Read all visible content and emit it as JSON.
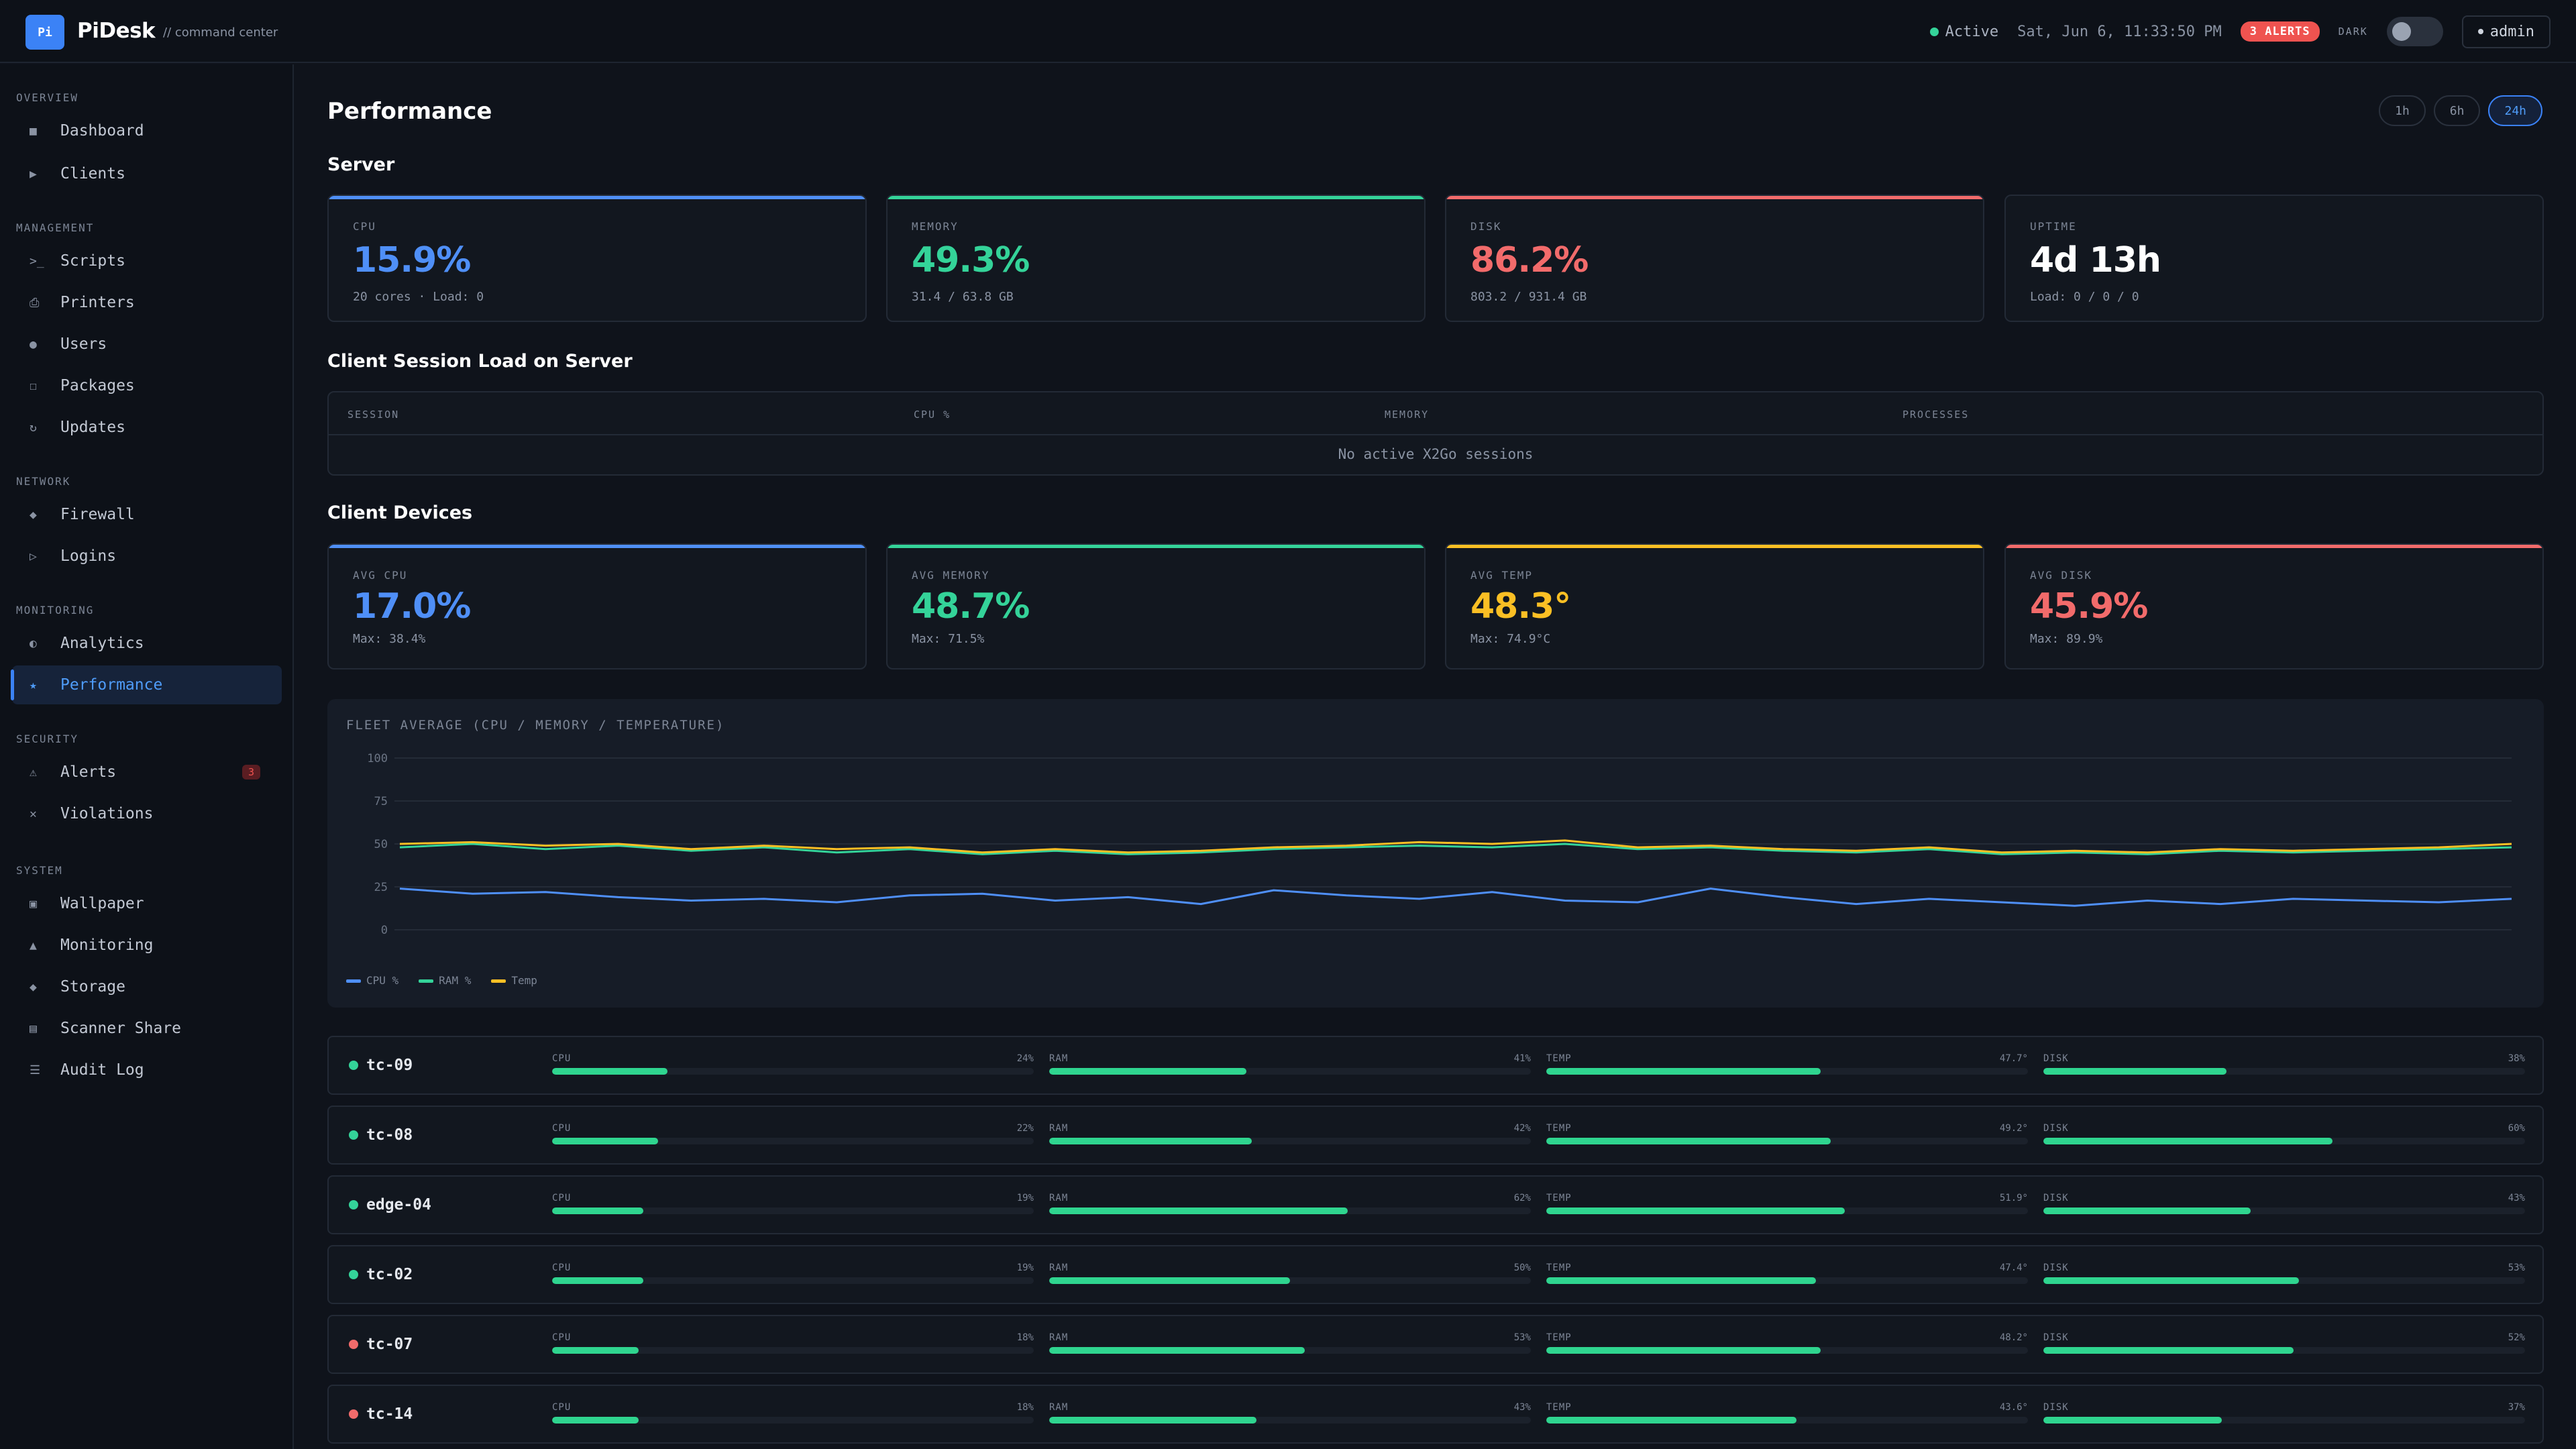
{
  "app": {
    "logo": "Pi",
    "name": "PiDesk",
    "subtitle": "// command center"
  },
  "topbar": {
    "status": "Active",
    "datetime": "Sat, Jun 6, 11:33:50 PM",
    "alerts_badge": "3 ALERTS",
    "theme_label": "DARK",
    "user": "admin"
  },
  "sidebar": {
    "sections": [
      {
        "title": "OVERVIEW",
        "items": [
          {
            "label": "Dashboard",
            "icon": "■"
          },
          {
            "label": "Clients",
            "icon": "▶"
          }
        ]
      },
      {
        "title": "MANAGEMENT",
        "items": [
          {
            "label": "Scripts",
            "icon": ">_"
          },
          {
            "label": "Printers",
            "icon": "⎙"
          },
          {
            "label": "Users",
            "icon": "●"
          },
          {
            "label": "Packages",
            "icon": "☐"
          },
          {
            "label": "Updates",
            "icon": "↻"
          }
        ]
      },
      {
        "title": "NETWORK",
        "items": [
          {
            "label": "Firewall",
            "icon": "◆"
          },
          {
            "label": "Logins",
            "icon": "▷"
          }
        ]
      },
      {
        "title": "MONITORING",
        "items": [
          {
            "label": "Analytics",
            "icon": "◐"
          },
          {
            "label": "Performance",
            "icon": "★"
          }
        ]
      },
      {
        "title": "SECURITY",
        "items": [
          {
            "label": "Alerts",
            "icon": "⚠",
            "badge": "3"
          },
          {
            "label": "Violations",
            "icon": "✕"
          }
        ]
      },
      {
        "title": "SYSTEM",
        "items": [
          {
            "label": "Wallpaper",
            "icon": "▣"
          },
          {
            "label": "Monitoring",
            "icon": "▲"
          },
          {
            "label": "Storage",
            "icon": "◆"
          },
          {
            "label": "Scanner Share",
            "icon": "▤"
          },
          {
            "label": "Audit Log",
            "icon": "☰"
          }
        ]
      }
    ],
    "active_item": "Performance"
  },
  "page": {
    "title": "Performance",
    "ranges": [
      "1h",
      "6h",
      "24h"
    ],
    "active_range": "24h"
  },
  "server": {
    "title": "Server",
    "cards": [
      {
        "label": "CPU",
        "value": "15.9%",
        "sub": "20 cores · Load: 0",
        "color": "#4f8ff7"
      },
      {
        "label": "MEMORY",
        "value": "49.3%",
        "sub": "31.4 / 63.8 GB",
        "color": "#34d399"
      },
      {
        "label": "DISK",
        "value": "86.2%",
        "sub": "803.2 / 931.4 GB",
        "color": "#f26b6b"
      },
      {
        "label": "UPTIME",
        "value": "4d 13h",
        "sub": "Load: 0 / 0 / 0",
        "color": "#ffffff"
      }
    ]
  },
  "sessions": {
    "title": "Client Session Load on Server",
    "columns": [
      "SESSION",
      "CPU %",
      "MEMORY",
      "PROCESSES"
    ],
    "empty": "No active X2Go sessions"
  },
  "clients": {
    "title": "Client Devices",
    "cards": [
      {
        "label": "AVG CPU",
        "value": "17.0%",
        "sub": "Max: 38.4%",
        "color": "#4f8ff7"
      },
      {
        "label": "AVG MEMORY",
        "value": "48.7%",
        "sub": "Max: 71.5%",
        "color": "#34d399"
      },
      {
        "label": "AVG TEMP",
        "value": "48.3°",
        "sub": "Max: 74.9°C",
        "color": "#fbbf24"
      },
      {
        "label": "AVG DISK",
        "value": "45.9%",
        "sub": "Max: 89.9%",
        "color": "#f26b6b"
      }
    ]
  },
  "chart_data": {
    "type": "line",
    "title": "FLEET AVERAGE (CPU / MEMORY / TEMPERATURE)",
    "ylim": [
      0,
      100
    ],
    "y_ticks": [
      "100",
      "75",
      "50",
      "25",
      "0"
    ],
    "legend_position": "bottom-left",
    "grid": true,
    "series": [
      {
        "name": "CPU %",
        "color": "#4f8ff7",
        "values": [
          24,
          21,
          22,
          19,
          17,
          18,
          16,
          20,
          21,
          17,
          19,
          15,
          23,
          20,
          18,
          22,
          17,
          16,
          24,
          19,
          15,
          18,
          16,
          14,
          17,
          15,
          18,
          17,
          16,
          18
        ]
      },
      {
        "name": "RAM %",
        "color": "#34d399",
        "values": [
          48,
          50,
          47,
          49,
          46,
          48,
          45,
          47,
          44,
          46,
          44,
          45,
          47,
          48,
          49,
          48,
          50,
          47,
          48,
          46,
          45,
          47,
          44,
          45,
          44,
          46,
          45,
          46,
          47,
          48
        ]
      },
      {
        "name": "Temp",
        "color": "#fbbf24",
        "values": [
          50,
          51,
          49,
          50,
          47,
          49,
          47,
          48,
          45,
          47,
          45,
          46,
          48,
          49,
          51,
          50,
          52,
          48,
          49,
          47,
          46,
          48,
          45,
          46,
          45,
          47,
          46,
          47,
          48,
          50
        ]
      }
    ]
  },
  "devices": [
    {
      "name": "tc-09",
      "status_color": "#34d399",
      "cpu": "24%",
      "cpu_pct": 24,
      "ram": "41%",
      "ram_pct": 41,
      "temp": "47.7°",
      "temp_pct": 57,
      "disk": "38%",
      "disk_pct": 38
    },
    {
      "name": "tc-08",
      "status_color": "#34d399",
      "cpu": "22%",
      "cpu_pct": 22,
      "ram": "42%",
      "ram_pct": 42,
      "temp": "49.2°",
      "temp_pct": 59,
      "disk": "60%",
      "disk_pct": 60
    },
    {
      "name": "edge-04",
      "status_color": "#34d399",
      "cpu": "19%",
      "cpu_pct": 19,
      "ram": "62%",
      "ram_pct": 62,
      "temp": "51.9°",
      "temp_pct": 62,
      "disk": "43%",
      "disk_pct": 43
    },
    {
      "name": "tc-02",
      "status_color": "#34d399",
      "cpu": "19%",
      "cpu_pct": 19,
      "ram": "50%",
      "ram_pct": 50,
      "temp": "47.4°",
      "temp_pct": 56,
      "disk": "53%",
      "disk_pct": 53
    },
    {
      "name": "tc-07",
      "status_color": "#f26b6b",
      "cpu": "18%",
      "cpu_pct": 18,
      "ram": "53%",
      "ram_pct": 53,
      "temp": "48.2°",
      "temp_pct": 57,
      "disk": "52%",
      "disk_pct": 52
    },
    {
      "name": "tc-14",
      "status_color": "#f26b6b",
      "cpu": "18%",
      "cpu_pct": 18,
      "ram": "43%",
      "ram_pct": 43,
      "temp": "43.6°",
      "temp_pct": 52,
      "disk": "37%",
      "disk_pct": 37
    }
  ],
  "metric_labels": [
    "CPU",
    "RAM",
    "TEMP",
    "DISK"
  ]
}
